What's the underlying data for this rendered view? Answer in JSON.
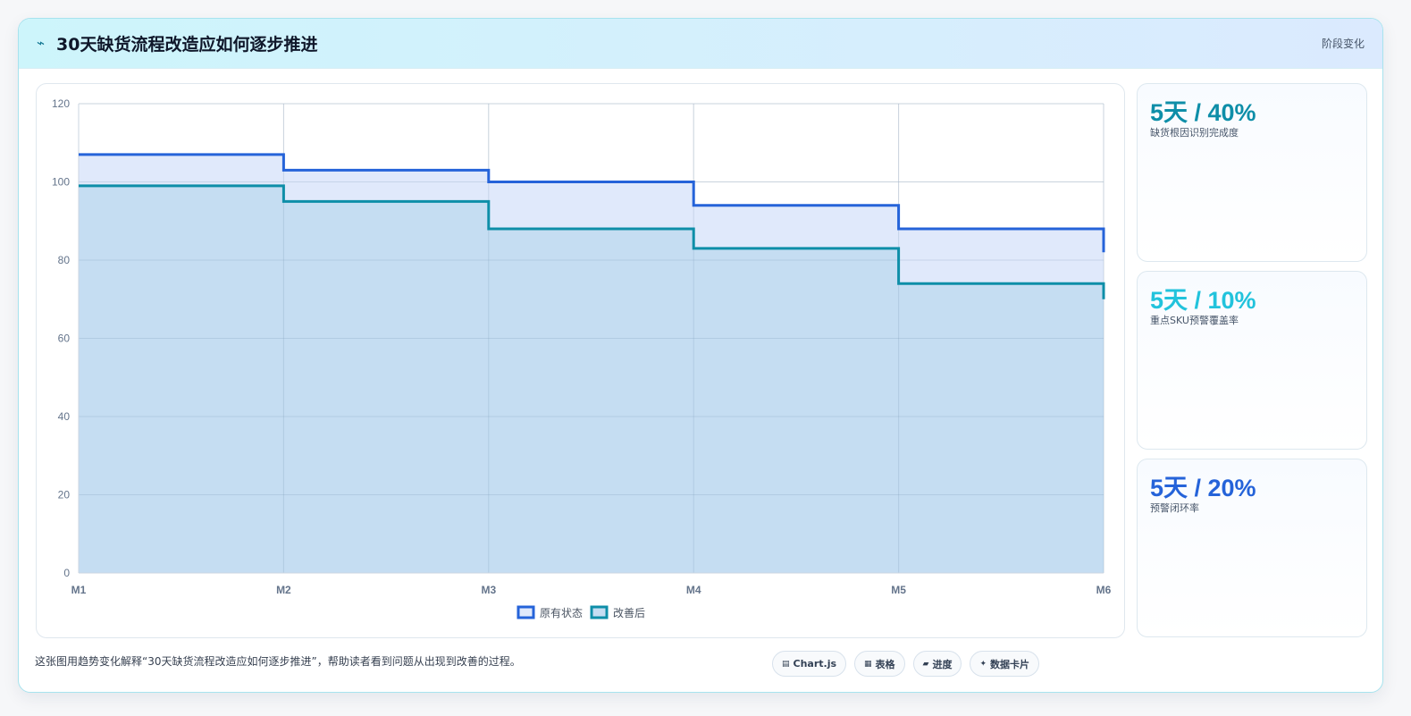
{
  "header": {
    "icon": "lightning-icon",
    "title": "30天缺货流程改造应如何逐步推进",
    "tag": "阶段变化"
  },
  "chart_data": {
    "type": "area",
    "stepped": true,
    "categories": [
      "M1",
      "M2",
      "M3",
      "M4",
      "M5",
      "M6"
    ],
    "ylim": [
      0,
      120
    ],
    "yticks": [
      0,
      20,
      40,
      60,
      80,
      100,
      120
    ],
    "grid": true,
    "legend_position": "bottom",
    "series": [
      {
        "name": "原有状态",
        "values": [
          107,
          103,
          100,
          94,
          88,
          82
        ],
        "color": "#2563d9",
        "fill": "#e0e9fb"
      },
      {
        "name": "改善后",
        "values": [
          99,
          95,
          88,
          83,
          74,
          70
        ],
        "color": "#0e8ea8",
        "fill": "#c5ddf2"
      }
    ]
  },
  "stats": [
    {
      "value": "5天 / 40%",
      "label": "缺货根因识别完成度",
      "color": "#0e8ea8"
    },
    {
      "value": "5天 / 10%",
      "label": "重点SKU预警覆盖率",
      "color": "#22c3dc"
    },
    {
      "value": "5天 / 20%",
      "label": "预警闭环率",
      "color": "#2563d9"
    }
  ],
  "footer": {
    "description": "这张图用趋势变化解释“30天缺货流程改造应如何逐步推进”，帮助读者看到问题从出现到改善的过程。",
    "chips": [
      {
        "icon": "chart-icon",
        "glyph": "▤",
        "label": "Chart.js"
      },
      {
        "icon": "table-icon",
        "glyph": "▦",
        "label": "表格"
      },
      {
        "icon": "progress-icon",
        "glyph": "▰",
        "label": "进度"
      },
      {
        "icon": "data-card-icon",
        "glyph": "✦",
        "label": "数据卡片"
      }
    ]
  }
}
